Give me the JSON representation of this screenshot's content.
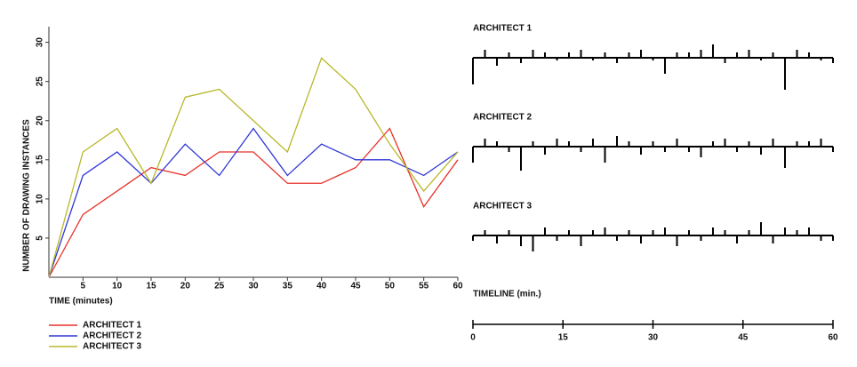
{
  "chart_data": [
    {
      "type": "line",
      "xlabel": "TIME (minutes)",
      "ylabel": "NUMBER OF DRAWING INSTANCES",
      "x": [
        0,
        5,
        10,
        15,
        20,
        25,
        30,
        35,
        40,
        45,
        50,
        55,
        60
      ],
      "series": [
        {
          "name": "ARCHITECT 1",
          "color": "#e8322c",
          "values": [
            0,
            8,
            11,
            14,
            13,
            16,
            16,
            12,
            12,
            14,
            19,
            9,
            15
          ]
        },
        {
          "name": "ARCHITECT 2",
          "color": "#2f37d6",
          "values": [
            0,
            13,
            16,
            12,
            17,
            13,
            19,
            13,
            17,
            15,
            15,
            13,
            16
          ]
        },
        {
          "name": "ARCHITECT 3",
          "color": "#b8b82a",
          "values": [
            0,
            16,
            19,
            12,
            23,
            24,
            20,
            16,
            28,
            24,
            17,
            11,
            16
          ]
        }
      ],
      "xlim": [
        0,
        60
      ],
      "ylim": [
        0,
        32
      ],
      "xticks": [
        5,
        10,
        15,
        20,
        25,
        30,
        35,
        40,
        45,
        50,
        55,
        60
      ],
      "yticks": [
        5,
        10,
        15,
        20,
        25,
        30
      ],
      "grid": false,
      "legend": "bottom-left"
    },
    {
      "type": "timeline",
      "xlabel": "TIMELINE (min.)",
      "color": "#000000",
      "x": [
        0,
        2,
        4,
        6,
        8,
        10,
        12,
        14,
        16,
        18,
        20,
        22,
        24,
        26,
        28,
        30,
        32,
        34,
        36,
        38,
        40,
        42,
        44,
        46,
        48,
        50,
        52,
        54,
        56,
        58,
        60
      ],
      "series": [
        {
          "name": "ARCHITECT 1",
          "values": [
            -10,
            3,
            -3,
            2,
            -2,
            3,
            2,
            -1,
            2,
            3,
            -1,
            2,
            -2,
            2,
            3,
            -1,
            -6,
            2,
            2,
            3,
            5,
            -2,
            2,
            3,
            -1,
            2,
            -12,
            3,
            2,
            -1,
            -2
          ]
        },
        {
          "name": "ARCHITECT 2",
          "values": [
            -6,
            3,
            2,
            -2,
            -9,
            2,
            -3,
            3,
            2,
            -2,
            3,
            -6,
            4,
            2,
            -3,
            2,
            -2,
            3,
            -2,
            -4,
            2,
            3,
            -2,
            2,
            -3,
            3,
            -8,
            2,
            2,
            3,
            -2
          ]
        },
        {
          "name": "ARCHITECT 3",
          "values": [
            -2,
            2,
            -3,
            2,
            -4,
            -6,
            3,
            -2,
            2,
            -4,
            2,
            3,
            -2,
            2,
            -3,
            2,
            3,
            -4,
            2,
            -2,
            3,
            2,
            -3,
            2,
            5,
            -3,
            3,
            2,
            3,
            -2,
            -2
          ]
        }
      ],
      "xlim": [
        0,
        60
      ],
      "xticks": [
        0,
        15,
        30,
        45,
        60
      ]
    }
  ]
}
